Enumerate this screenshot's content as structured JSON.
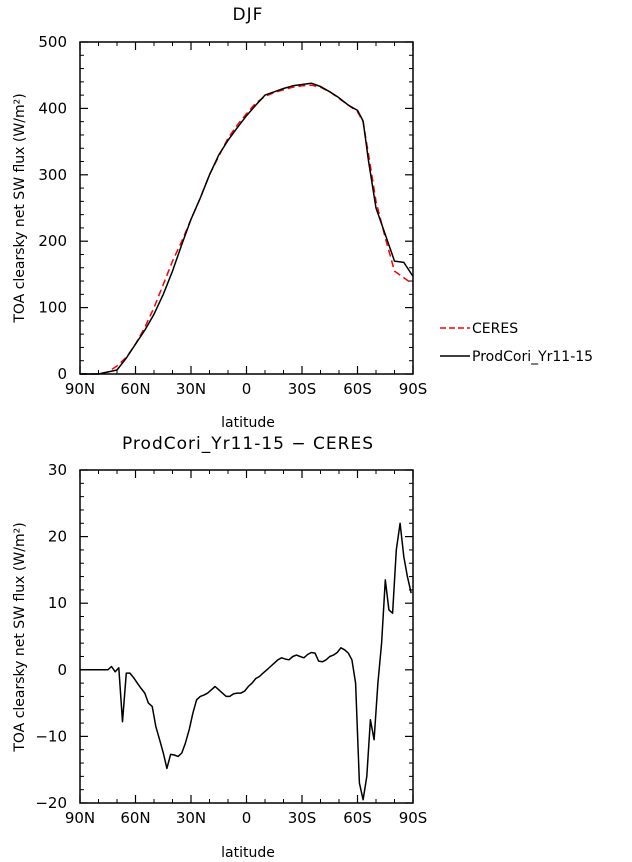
{
  "chart_data": [
    {
      "type": "line",
      "title": "DJF",
      "xlabel": "latitude",
      "ylabel": "TOA clearsky net SW flux (W/m²)",
      "xlim": [
        90,
        -90
      ],
      "ylim": [
        0,
        500
      ],
      "xticks": [
        90,
        60,
        30,
        0,
        -30,
        -60,
        -90
      ],
      "xticklabels": [
        "90N",
        "60N",
        "30N",
        "0",
        "30S",
        "60S",
        "90S"
      ],
      "yticks": [
        0,
        100,
        200,
        300,
        400,
        500
      ],
      "yticklabels": [
        "0",
        "100",
        "200",
        "300",
        "400",
        "500"
      ],
      "legend": "right",
      "series": [
        {
          "name": "CERES",
          "color": "#ff0000",
          "style": "dashed",
          "x": [
            90,
            85,
            80,
            75,
            70,
            65,
            60,
            55,
            50,
            45,
            40,
            35,
            30,
            25,
            20,
            15,
            10,
            5,
            0,
            -5,
            -10,
            -15,
            -20,
            -25,
            -30,
            -35,
            -40,
            -45,
            -50,
            -55,
            -60,
            -63,
            -66,
            -70,
            -75,
            -80,
            -85,
            -90
          ],
          "values": [
            0,
            0,
            0,
            3,
            12,
            25,
            45,
            70,
            100,
            135,
            170,
            200,
            233,
            265,
            300,
            328,
            355,
            375,
            392,
            408,
            418,
            424,
            428,
            432,
            434,
            435,
            432,
            425,
            415,
            405,
            395,
            380,
            330,
            260,
            205,
            155,
            145,
            135
          ]
        },
        {
          "name": "ProdCori_Yr11-15",
          "color": "#000000",
          "style": "solid",
          "x": [
            90,
            85,
            80,
            75,
            70,
            65,
            60,
            55,
            50,
            45,
            40,
            35,
            30,
            25,
            20,
            15,
            10,
            5,
            0,
            -5,
            -10,
            -15,
            -20,
            -25,
            -30,
            -35,
            -40,
            -45,
            -50,
            -55,
            -60,
            -63,
            -66,
            -70,
            -75,
            -80,
            -85,
            -90
          ],
          "values": [
            0,
            0,
            0,
            3,
            6,
            24,
            45,
            66,
            90,
            120,
            155,
            195,
            233,
            265,
            300,
            330,
            352,
            371,
            389,
            405,
            420,
            425,
            430,
            434,
            436,
            438,
            433,
            425,
            416,
            405,
            397,
            381,
            320,
            250,
            210,
            170,
            168,
            147
          ]
        }
      ]
    },
    {
      "type": "line",
      "title": "ProdCori_Yr11-15 − CERES",
      "xlabel": "latitude",
      "ylabel": "TOA clearsky net SW flux (W/m²)",
      "xlim": [
        90,
        -90
      ],
      "ylim": [
        -20,
        30
      ],
      "xticks": [
        90,
        60,
        30,
        0,
        -30,
        -60,
        -90
      ],
      "xticklabels": [
        "90N",
        "60N",
        "30N",
        "0",
        "30S",
        "60S",
        "90S"
      ],
      "yticks": [
        -20,
        -10,
        0,
        10,
        20,
        30
      ],
      "yticklabels": [
        "−20",
        "−10",
        "0",
        "10",
        "20",
        "30"
      ],
      "series": [
        {
          "color": "#000000",
          "style": "solid",
          "x": [
            90,
            85,
            80,
            75,
            73,
            71,
            69,
            67,
            65,
            63,
            61,
            59,
            57,
            55,
            53,
            51,
            49,
            47,
            45,
            43,
            41,
            39,
            37,
            35,
            33,
            31,
            29,
            27,
            25,
            23,
            21,
            19,
            17,
            15,
            13,
            11,
            9,
            7,
            5,
            3,
            1,
            -1,
            -3,
            -5,
            -7,
            -9,
            -11,
            -13,
            -15,
            -17,
            -19,
            -21,
            -23,
            -25,
            -27,
            -29,
            -31,
            -33,
            -35,
            -37,
            -39,
            -41,
            -43,
            -45,
            -47,
            -49,
            -51,
            -53,
            -55,
            -57,
            -59,
            -61,
            -63,
            -65,
            -67,
            -69,
            -71,
            -73,
            -75,
            -77,
            -79,
            -81,
            -83,
            -85,
            -87,
            -89
          ],
          "values": [
            0,
            0,
            0,
            0,
            0.5,
            -0.3,
            0.3,
            -7.8,
            -0.5,
            -0.5,
            -1.2,
            -2.0,
            -2.8,
            -3.5,
            -5.0,
            -5.5,
            -8.5,
            -10.5,
            -12.5,
            -14.8,
            -12.7,
            -12.8,
            -13.0,
            -12.5,
            -11.0,
            -9.0,
            -6.5,
            -4.5,
            -4.0,
            -3.8,
            -3.5,
            -3.0,
            -2.5,
            -3.0,
            -3.5,
            -4.0,
            -4.0,
            -3.6,
            -3.5,
            -3.5,
            -3.2,
            -2.5,
            -2.0,
            -1.3,
            -1.0,
            -0.5,
            0,
            0.5,
            1.0,
            1.5,
            1.8,
            1.6,
            1.5,
            2.0,
            2.2,
            2.0,
            1.8,
            2.3,
            2.6,
            2.5,
            1.3,
            1.2,
            1.5,
            2.0,
            2.2,
            2.6,
            3.3,
            3.0,
            2.5,
            1.5,
            -2.0,
            -17.0,
            -19.5,
            -16.0,
            -7.5,
            -10.5,
            -2.0,
            4.0,
            13.5,
            9.0,
            8.5,
            18.0,
            22.0,
            17.0,
            14.0,
            11.5
          ]
        }
      ]
    }
  ]
}
